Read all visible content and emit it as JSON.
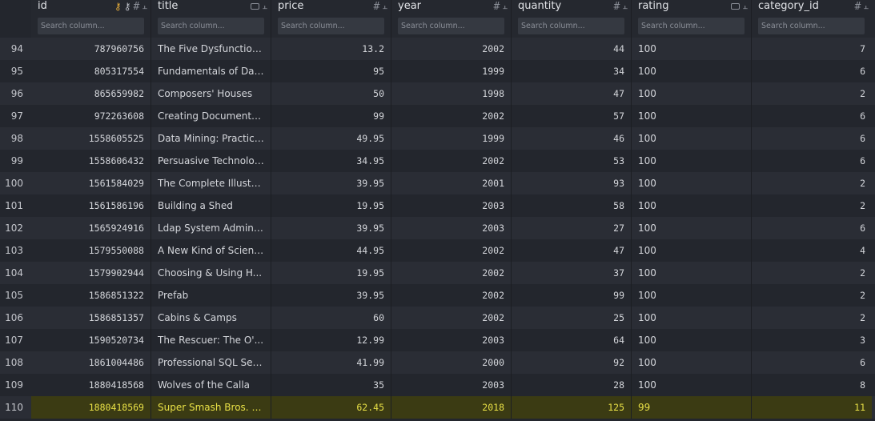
{
  "columns": [
    {
      "name": "id",
      "search_placeholder": "Search column..."
    },
    {
      "name": "title",
      "search_placeholder": "Search column..."
    },
    {
      "name": "price",
      "search_placeholder": "Search column..."
    },
    {
      "name": "year",
      "search_placeholder": "Search column..."
    },
    {
      "name": "quantity",
      "search_placeholder": "Search column..."
    },
    {
      "name": "rating",
      "search_placeholder": "Search column..."
    },
    {
      "name": "category_id",
      "search_placeholder": "Search column..."
    }
  ],
  "column_icons": {
    "id": [
      "primary-key-icon",
      "foreign-key-icon",
      "numeric-type-icon",
      "pin-icon"
    ],
    "title": [
      "text-type-icon",
      "pin-icon"
    ],
    "price": [
      "numeric-type-icon",
      "pin-icon"
    ],
    "year": [
      "numeric-type-icon",
      "pin-icon"
    ],
    "quantity": [
      "numeric-type-icon",
      "pin-icon"
    ],
    "rating": [
      "text-type-icon",
      "pin-icon"
    ],
    "category_id": [
      "numeric-type-icon",
      "pin-icon"
    ]
  },
  "rows": [
    {
      "row": "94",
      "id": "787960756",
      "title": "The Five Dysfunction...",
      "price": "13.2",
      "year": "2002",
      "quantity": "44",
      "rating": "100",
      "category_id": "7"
    },
    {
      "row": "95",
      "id": "805317554",
      "title": "Fundamentals of Dat...",
      "price": "95",
      "year": "1999",
      "quantity": "34",
      "rating": "100",
      "category_id": "6"
    },
    {
      "row": "96",
      "id": "865659982",
      "title": "Composers' Houses",
      "price": "50",
      "year": "1998",
      "quantity": "47",
      "rating": "100",
      "category_id": "2"
    },
    {
      "row": "97",
      "id": "972263608",
      "title": "Creating Documents ...",
      "price": "99",
      "year": "2002",
      "quantity": "57",
      "rating": "100",
      "category_id": "6"
    },
    {
      "row": "98",
      "id": "1558605525",
      "title": "Data Mining: Practica...",
      "price": "49.95",
      "year": "1999",
      "quantity": "46",
      "rating": "100",
      "category_id": "6"
    },
    {
      "row": "99",
      "id": "1558606432",
      "title": "Persuasive Technolog...",
      "price": "34.95",
      "year": "2002",
      "quantity": "53",
      "rating": "100",
      "category_id": "6"
    },
    {
      "row": "100",
      "id": "1561584029",
      "title": "The Complete Illustra...",
      "price": "39.95",
      "year": "2001",
      "quantity": "93",
      "rating": "100",
      "category_id": "2"
    },
    {
      "row": "101",
      "id": "1561586196",
      "title": "Building a Shed",
      "price": "19.95",
      "year": "2003",
      "quantity": "58",
      "rating": "100",
      "category_id": "2"
    },
    {
      "row": "102",
      "id": "1565924916",
      "title": "Ldap System Adminis...",
      "price": "39.95",
      "year": "2003",
      "quantity": "27",
      "rating": "100",
      "category_id": "6"
    },
    {
      "row": "103",
      "id": "1579550088",
      "title": "A New Kind of Science",
      "price": "44.95",
      "year": "2002",
      "quantity": "47",
      "rating": "100",
      "category_id": "4"
    },
    {
      "row": "104",
      "id": "1579902944",
      "title": "Choosing & Using H...",
      "price": "19.95",
      "year": "2002",
      "quantity": "37",
      "rating": "100",
      "category_id": "2"
    },
    {
      "row": "105",
      "id": "1586851322",
      "title": "Prefab",
      "price": "39.95",
      "year": "2002",
      "quantity": "99",
      "rating": "100",
      "category_id": "2"
    },
    {
      "row": "106",
      "id": "1586851357",
      "title": "Cabins & Camps",
      "price": "60",
      "year": "2002",
      "quantity": "25",
      "rating": "100",
      "category_id": "2"
    },
    {
      "row": "107",
      "id": "1590520734",
      "title": "The Rescuer: The O'...",
      "price": "12.99",
      "year": "2003",
      "quantity": "64",
      "rating": "100",
      "category_id": "3"
    },
    {
      "row": "108",
      "id": "1861004486",
      "title": "Professional SQL Ser...",
      "price": "41.99",
      "year": "2000",
      "quantity": "92",
      "rating": "100",
      "category_id": "6"
    },
    {
      "row": "109",
      "id": "1880418568",
      "title": "Wolves of the Calla",
      "price": "35",
      "year": "2003",
      "quantity": "28",
      "rating": "100",
      "category_id": "8"
    },
    {
      "row": "110",
      "id": "1880418569",
      "title": "Super Smash Bros. Ul...",
      "price": "62.45",
      "year": "2018",
      "quantity": "125",
      "rating": "99",
      "category_id": "11",
      "highlighted": true
    }
  ],
  "colors": {
    "background": "#23262d",
    "row_alt": "#2a2d35",
    "highlight_bg": "#3b3b13",
    "highlight_text": "#e8e046",
    "key_icon": "#e1a93a"
  }
}
